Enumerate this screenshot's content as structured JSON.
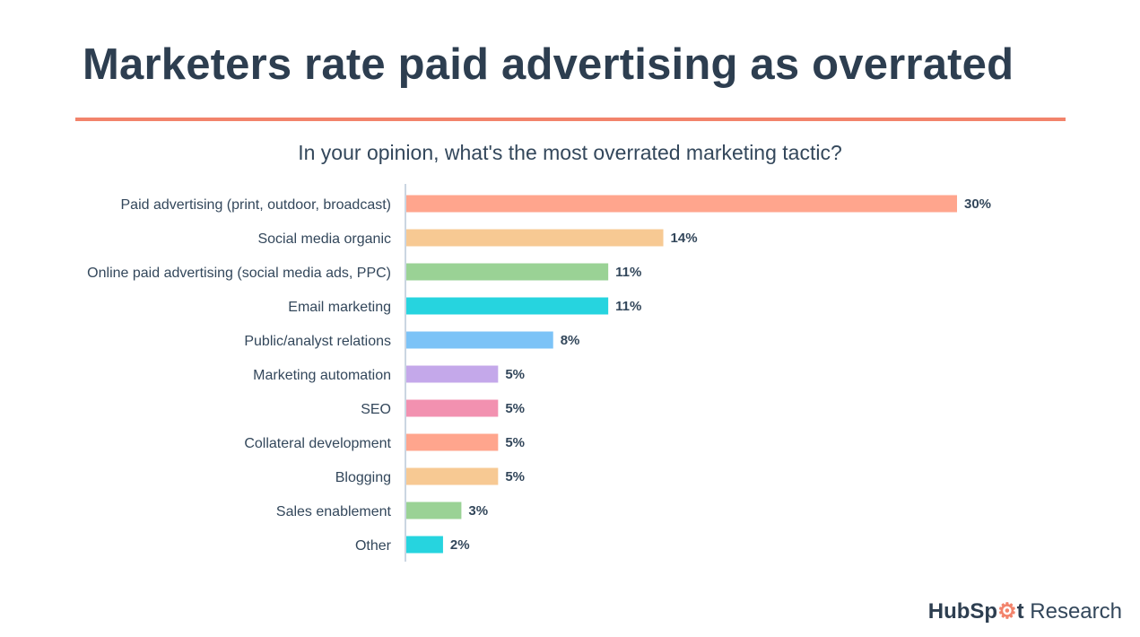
{
  "title": "Marketers rate paid advertising as overrated",
  "colors": {
    "title": "#2d3e50",
    "rule": "#f2836b",
    "text": "#33475b",
    "axis": "#cbd6e2"
  },
  "chart_data": {
    "type": "bar",
    "orientation": "horizontal",
    "title": "In your opinion, what's the most overrated marketing tactic?",
    "xlabel": "",
    "ylabel": "",
    "xlim": [
      0,
      30
    ],
    "grid": false,
    "categories": [
      "Paid advertising (print, outdoor, broadcast)",
      "Social media organic",
      "Online paid advertising (social media ads, PPC)",
      "Email marketing",
      "Public/analyst relations",
      "Marketing automation",
      "SEO",
      "Collateral development",
      "Blogging",
      "Sales enablement",
      "Other"
    ],
    "values": [
      30,
      14,
      11,
      11,
      8,
      5,
      5,
      5,
      5,
      3,
      2
    ],
    "value_labels": [
      "30%",
      "14%",
      "11%",
      "11%",
      "8%",
      "5%",
      "5%",
      "5%",
      "5%",
      "3%",
      "2%"
    ],
    "bar_colors": [
      "#ffa58d",
      "#f7c993",
      "#9ad295",
      "#26d4df",
      "#7cc3f7",
      "#c4a8ea",
      "#f291b0",
      "#ffa58d",
      "#f7c993",
      "#9ad295",
      "#26d4df"
    ]
  },
  "logo": {
    "brand_a": "HubSp",
    "brand_b": "t",
    "suffix": " Research"
  }
}
